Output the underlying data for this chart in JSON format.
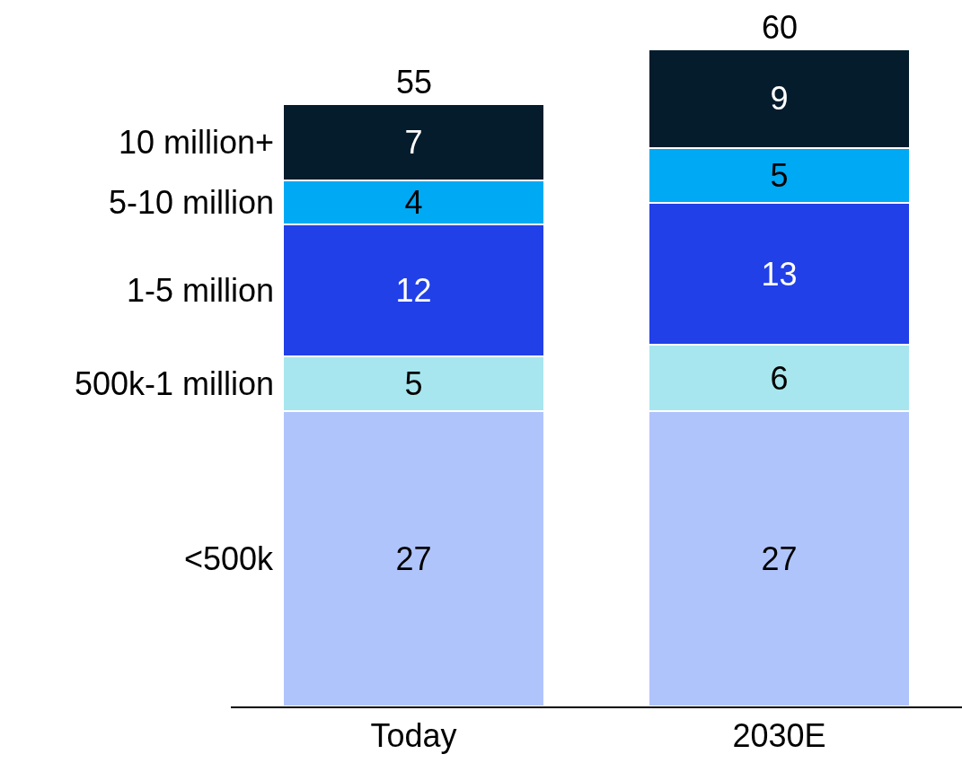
{
  "chart_data": {
    "type": "bar",
    "stacked": true,
    "categories": [
      "Today",
      "2030E"
    ],
    "series": [
      {
        "name": "<500k",
        "color": "#b0c4fc",
        "values": [
          27,
          27
        ]
      },
      {
        "name": "500k-1 million",
        "color": "#a8e6ef",
        "values": [
          5,
          6
        ]
      },
      {
        "name": "1-5 million",
        "color": "#2140e8",
        "values": [
          12,
          13
        ]
      },
      {
        "name": "5-10 million",
        "color": "#00a9f4",
        "values": [
          4,
          5
        ]
      },
      {
        "name": "10 million+",
        "color": "#051c2c",
        "values": [
          7,
          9
        ]
      }
    ],
    "data_labels": true,
    "totals": [
      "55",
      "60"
    ],
    "legend": false
  }
}
